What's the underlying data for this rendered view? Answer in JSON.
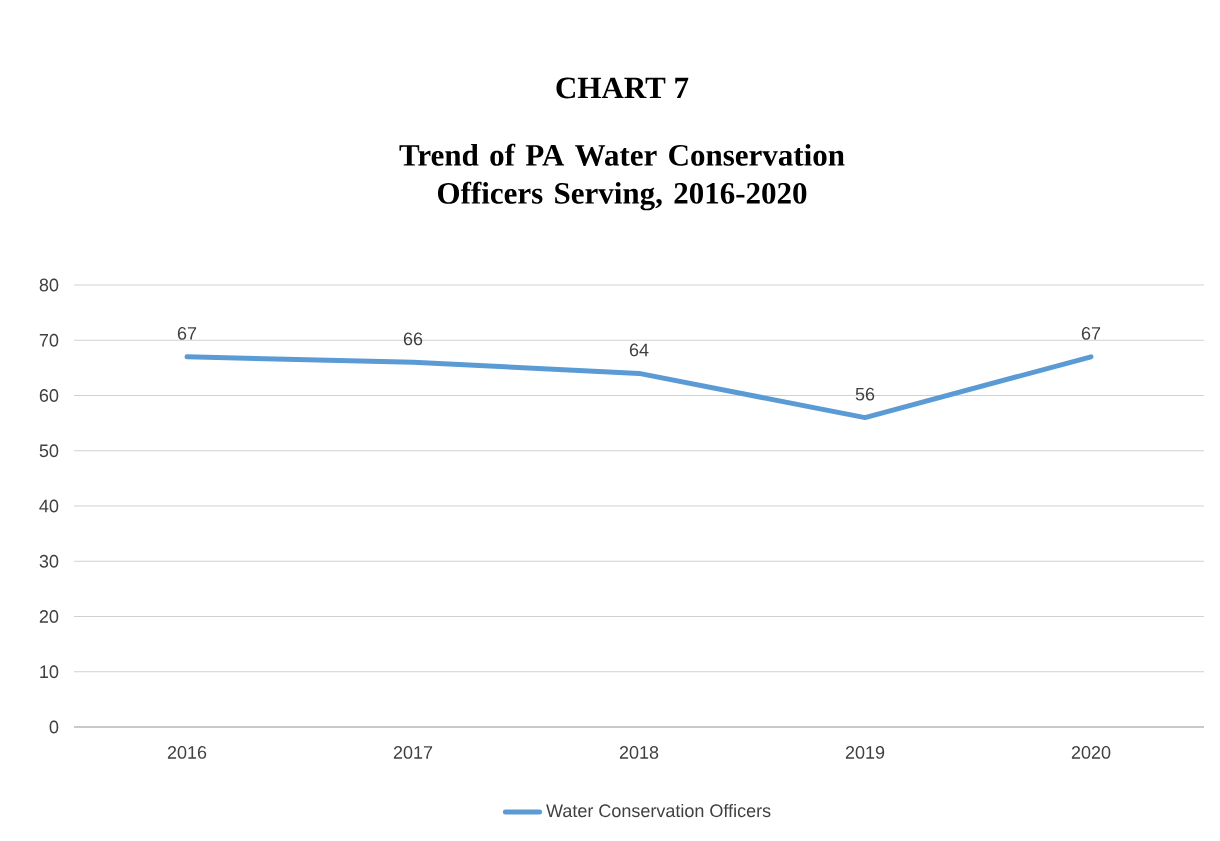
{
  "chart_data": {
    "type": "line",
    "title": "CHART 7",
    "subtitle": "Trend of PA Water Conservation Officers Serving, 2016-2020",
    "categories": [
      "2016",
      "2017",
      "2018",
      "2019",
      "2020"
    ],
    "series": [
      {
        "name": "Water Conservation Officers",
        "color": "#5b9bd5",
        "values": [
          67,
          66,
          64,
          56,
          67
        ]
      }
    ],
    "ylim": [
      0,
      80
    ],
    "yticks": [
      0,
      10,
      20,
      30,
      40,
      50,
      60,
      70,
      80
    ],
    "grid": "y",
    "legend": "bottom",
    "data_labels": true,
    "marker": "none",
    "line_style": "solid"
  }
}
